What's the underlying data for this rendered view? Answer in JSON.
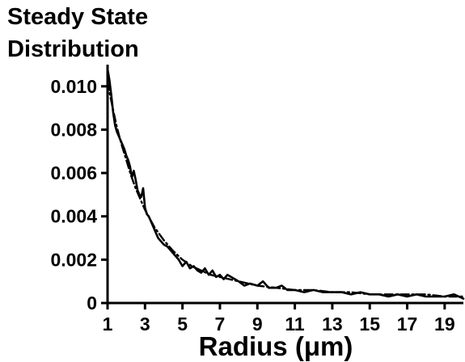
{
  "chart_data": {
    "type": "line",
    "title_lines": [
      "Steady State",
      "Distribution"
    ],
    "xlabel": "Radius (μm)",
    "ylabel": "",
    "xlim": [
      1,
      20
    ],
    "ylim": [
      0,
      0.011
    ],
    "x_ticks": [
      1,
      3,
      5,
      7,
      9,
      11,
      13,
      15,
      17,
      19
    ],
    "x_tick_labels": [
      "1",
      "3",
      "5",
      "7",
      "9",
      "11",
      "13",
      "15",
      "17",
      "19"
    ],
    "y_ticks": [
      0,
      0.002,
      0.004,
      0.006,
      0.008,
      0.01
    ],
    "y_tick_labels": [
      "0",
      "0.002",
      "0.004",
      "0.006",
      "0.008",
      "0.010"
    ],
    "grid": false,
    "legend": "none",
    "series": [
      {
        "style": "solid",
        "color": "#000000",
        "x": [
          1,
          1.1,
          1.2,
          1.3,
          1.4,
          1.5,
          1.6,
          1.7,
          1.8,
          1.9,
          2,
          2.1,
          2.2,
          2.3,
          2.4,
          2.5,
          2.6,
          2.7,
          2.8,
          2.9,
          3,
          3.1,
          3.2,
          3.3,
          3.4,
          3.5,
          3.6,
          3.7,
          3.8,
          3.9,
          4,
          4.2,
          4.4,
          4.6,
          4.8,
          5,
          5.2,
          5.4,
          5.6,
          5.8,
          6,
          6.2,
          6.4,
          6.6,
          6.8,
          7,
          7.2,
          7.4,
          7.6,
          7.8,
          8,
          8.3,
          8.6,
          9,
          9.3,
          9.6,
          10,
          10.3,
          10.6,
          11,
          11.5,
          12,
          12.5,
          13,
          13.5,
          14,
          14.5,
          15,
          15.5,
          16,
          16.5,
          17,
          17.5,
          18,
          18.5,
          19,
          19.5,
          20
        ],
        "y": [
          0.0108,
          0.0103,
          0.0096,
          0.0088,
          0.0082,
          0.0079,
          0.0077,
          0.0075,
          0.0073,
          0.0071,
          0.0068,
          0.0066,
          0.0063,
          0.0058,
          0.0061,
          0.0057,
          0.0052,
          0.005,
          0.0049,
          0.0053,
          0.0044,
          0.0041,
          0.004,
          0.0038,
          0.0036,
          0.0034,
          0.0032,
          0.003,
          0.0029,
          0.0028,
          0.0027,
          0.0026,
          0.0024,
          0.0022,
          0.002,
          0.0017,
          0.0019,
          0.0016,
          0.0017,
          0.0015,
          0.0014,
          0.0016,
          0.0013,
          0.0015,
          0.0012,
          0.0013,
          0.0011,
          0.0013,
          0.0012,
          0.0011,
          0.001,
          0.0008,
          0.0009,
          0.0008,
          0.001,
          0.0007,
          0.0007,
          0.0008,
          0.0006,
          0.0006,
          0.0005,
          0.0006,
          0.0005,
          0.0005,
          0.0005,
          0.0004,
          0.0005,
          0.0004,
          0.0004,
          0.0003,
          0.0004,
          0.0003,
          0.0004,
          0.0003,
          0.0003,
          0.0003,
          0.0004,
          0.0002
        ]
      },
      {
        "style": "dash-dot",
        "color": "#000000",
        "x": [
          1,
          1.25,
          1.5,
          1.75,
          2,
          2.25,
          2.5,
          2.75,
          3,
          3.25,
          3.5,
          3.75,
          4,
          4.5,
          5,
          5.5,
          6,
          6.5,
          7,
          7.5,
          8,
          9,
          10,
          11,
          12,
          13,
          14,
          15,
          16,
          17,
          18,
          19,
          20
        ],
        "y": [
          0.0102,
          0.0091,
          0.0081,
          0.0073,
          0.0066,
          0.0059,
          0.0053,
          0.0048,
          0.0043,
          0.0039,
          0.0035,
          0.0032,
          0.0029,
          0.0024,
          0.002,
          0.0017,
          0.0015,
          0.0013,
          0.0012,
          0.0011,
          0.001,
          0.0008,
          0.0007,
          0.0006,
          0.0006,
          0.0005,
          0.0005,
          0.0004,
          0.0004,
          0.0004,
          0.0004,
          0.0003,
          0.0003
        ]
      }
    ]
  }
}
